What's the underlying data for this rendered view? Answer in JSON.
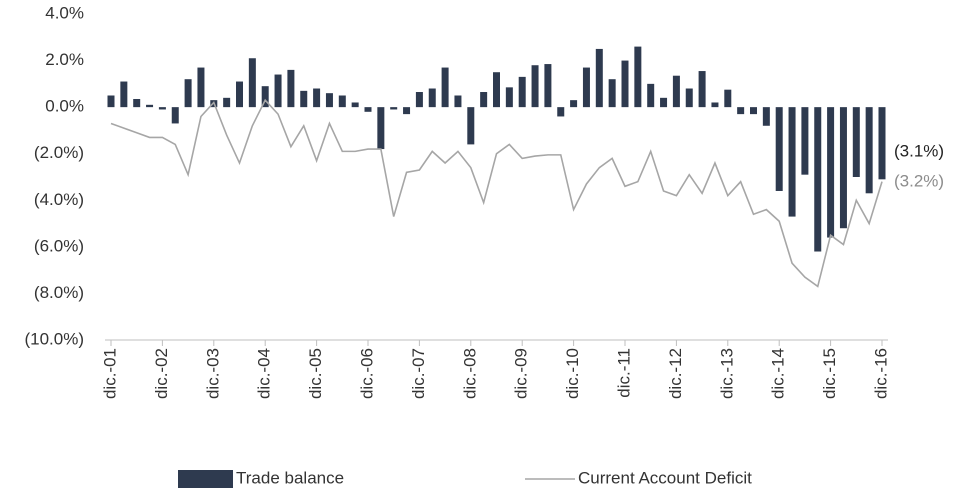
{
  "chart_data": {
    "type": "bar_line",
    "categories": [
      "dic.-01",
      null,
      null,
      null,
      "dic.-02",
      null,
      null,
      null,
      "dic.-03",
      null,
      null,
      null,
      "dic.-04",
      null,
      null,
      null,
      "dic.-05",
      null,
      null,
      null,
      "dic.-06",
      null,
      null,
      null,
      "dic.-07",
      null,
      null,
      null,
      "dic.-08",
      null,
      null,
      null,
      "dic.-09",
      null,
      null,
      null,
      "dic.-10",
      null,
      null,
      null,
      "dic.-11",
      null,
      null,
      null,
      "dic.-12",
      null,
      null,
      null,
      "dic.-13",
      null,
      null,
      null,
      "dic.-14",
      null,
      null,
      null,
      "dic.-15",
      null,
      null,
      null,
      "dic.-16"
    ],
    "series": [
      {
        "name": "Trade balance",
        "type": "bar",
        "color": "#2e3a4f",
        "values": [
          0.5,
          1.1,
          0.35,
          0.1,
          -0.1,
          -0.7,
          1.2,
          1.7,
          0.3,
          0.4,
          1.1,
          2.1,
          0.9,
          1.4,
          1.6,
          0.7,
          0.8,
          0.6,
          0.5,
          0.2,
          -0.2,
          -1.8,
          -0.1,
          -0.3,
          0.65,
          0.8,
          1.7,
          0.5,
          -1.6,
          0.65,
          1.5,
          0.85,
          1.3,
          1.8,
          1.85,
          -0.4,
          0.3,
          1.7,
          2.5,
          1.2,
          2.0,
          2.6,
          1.0,
          0.4,
          1.35,
          0.8,
          1.55,
          0.2,
          0.75,
          -0.3,
          -0.3,
          -0.8,
          -3.6,
          -4.7,
          -2.9,
          -6.2,
          -5.6,
          -5.2,
          -3.0,
          -3.7,
          -3.1
        ],
        "value_labels": [
          null,
          null,
          null,
          null,
          null,
          null,
          null,
          null,
          null,
          null,
          null,
          null,
          null,
          null,
          null,
          null,
          null,
          null,
          null,
          null,
          null,
          null,
          null,
          null,
          null,
          null,
          null,
          null,
          null,
          null,
          null,
          null,
          null,
          null,
          null,
          null,
          null,
          null,
          null,
          null,
          null,
          null,
          null,
          null,
          null,
          null,
          null,
          null,
          null,
          null,
          null,
          null,
          null,
          null,
          null,
          null,
          null,
          null,
          null,
          null,
          "(3.1%)"
        ]
      },
      {
        "name": "Current Account Deficit",
        "type": "line",
        "color": "#a6a6a6",
        "values": [
          -0.7,
          -0.9,
          -1.1,
          -1.3,
          -1.3,
          -1.6,
          -2.9,
          -0.4,
          0.2,
          -1.2,
          -2.4,
          -0.8,
          0.3,
          -0.3,
          -1.7,
          -0.8,
          -2.3,
          -0.7,
          -1.9,
          -1.9,
          -1.8,
          -1.8,
          -4.7,
          -2.8,
          -2.7,
          -1.9,
          -2.4,
          -1.9,
          -2.6,
          -4.1,
          -2.0,
          -1.6,
          -2.2,
          -2.1,
          -2.05,
          -2.05,
          -4.4,
          -3.3,
          -2.6,
          -2.2,
          -3.4,
          -3.2,
          -1.9,
          -3.6,
          -3.8,
          -2.9,
          -3.7,
          -2.4,
          -3.8,
          -3.2,
          -4.6,
          -4.4,
          -4.9,
          -6.7,
          -7.3,
          -7.7,
          -5.5,
          -5.9,
          -4.0,
          -5.0,
          -3.2
        ],
        "value_labels": [
          null,
          null,
          null,
          null,
          null,
          null,
          null,
          null,
          null,
          null,
          null,
          null,
          null,
          null,
          null,
          null,
          null,
          null,
          null,
          null,
          null,
          null,
          null,
          null,
          null,
          null,
          null,
          null,
          null,
          null,
          null,
          null,
          null,
          null,
          null,
          null,
          null,
          null,
          null,
          null,
          null,
          null,
          null,
          null,
          null,
          null,
          null,
          null,
          null,
          null,
          null,
          null,
          null,
          null,
          null,
          null,
          null,
          null,
          null,
          null,
          "(3.2%)"
        ]
      }
    ],
    "ylim": [
      -10,
      4
    ],
    "yticks": [
      {
        "value": 4,
        "label": "4.0%"
      },
      {
        "value": 2,
        "label": "2.0%"
      },
      {
        "value": 0,
        "label": "0.0%"
      },
      {
        "value": -2,
        "label": "(2.0%)"
      },
      {
        "value": -4,
        "label": "(4.0%)"
      },
      {
        "value": -6,
        "label": "(6.0%)"
      },
      {
        "value": -8,
        "label": "(8.0%)"
      },
      {
        "value": -10,
        "label": "(10.0%)"
      }
    ],
    "legend": "bottom"
  }
}
